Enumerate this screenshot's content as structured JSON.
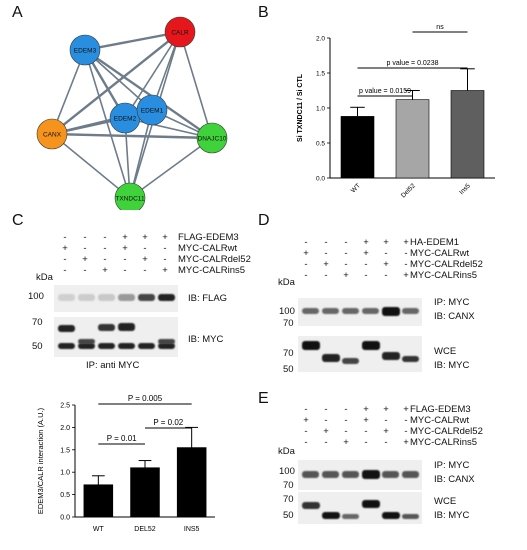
{
  "panels": {
    "A": {
      "letter": "A",
      "nodes": [
        {
          "label": "CALR",
          "color": "#e5171c"
        },
        {
          "label": "EDEM3",
          "color": "#2a8ee0"
        },
        {
          "label": "EDEM2",
          "color": "#2a8ee0"
        },
        {
          "label": "EDEM1",
          "color": "#2a8ee0"
        },
        {
          "label": "CANX",
          "color": "#f5931d"
        },
        {
          "label": "DNAJC10",
          "color": "#3fd23b"
        },
        {
          "label": "TXNDC11",
          "color": "#3fd23b"
        }
      ]
    },
    "B": {
      "letter": "B",
      "chart_data": {
        "type": "bar",
        "categories": [
          "WT",
          "Del52",
          "Ins5"
        ],
        "values": [
          0.88,
          1.12,
          1.25
        ],
        "errors": [
          0.13,
          0.13,
          0.31
        ],
        "colors": [
          "#000000",
          "#a6a6a6",
          "#5f5f5f"
        ],
        "ylabel": "Si TXNDC11 / Si CTL",
        "ylim": [
          0,
          2.0
        ],
        "yticks": [
          "0.0",
          "0.5",
          "1.0",
          "1.5",
          "2.0"
        ],
        "annotations": [
          {
            "text": "p value = 0.0159",
            "from": 0,
            "to": 1
          },
          {
            "text": "p value = 0.0238",
            "from": 0,
            "to": 2
          },
          {
            "text": "ns",
            "from": 1,
            "to": 2
          }
        ]
      }
    },
    "C": {
      "letter": "C",
      "rows": [
        {
          "label": "FLAG-EDEM3",
          "marks": [
            "-",
            "-",
            "-",
            "+",
            "+",
            "+"
          ]
        },
        {
          "label": "MYC-CALRwt",
          "marks": [
            "+",
            "-",
            "-",
            "+",
            "-",
            "-"
          ]
        },
        {
          "label": "MYC-CALRdel52",
          "marks": [
            "-",
            "+",
            "-",
            "-",
            "+",
            "-"
          ]
        },
        {
          "label": "MYC-CALRins5",
          "marks": [
            "-",
            "-",
            "+",
            "-",
            "-",
            "+"
          ]
        }
      ],
      "kda": "kDa",
      "markers_top": [
        "100",
        "70"
      ],
      "markers_bottom": [
        "50"
      ],
      "ib_top": "IB: FLAG",
      "ib_bottom": "IB: MYC",
      "ip_label": "IP: anti MYC",
      "chart_data": {
        "type": "bar",
        "categories": [
          "WT",
          "DEL52",
          "INS5"
        ],
        "values": [
          0.72,
          1.1,
          1.55
        ],
        "errors": [
          0.2,
          0.16,
          0.45
        ],
        "ylabel": "EDEM3/CALR interaction (A.U.)",
        "ylim": [
          0,
          2.5
        ],
        "yticks": [
          "0.0",
          "0.5",
          "1.0",
          "1.5",
          "2.0",
          "2.5"
        ],
        "annotations": [
          {
            "text": "P = 0.005",
            "from": 0,
            "to": 2
          },
          {
            "text": "P = 0.01",
            "from": 0,
            "to": 1
          },
          {
            "text": "P = 0.02",
            "from": 1,
            "to": 2
          }
        ]
      }
    },
    "D": {
      "letter": "D",
      "rows": [
        {
          "label": "HA-EDEM1",
          "marks": [
            "-",
            "-",
            "-",
            "+",
            "+",
            "+"
          ]
        },
        {
          "label": "MYC-CALRwt",
          "marks": [
            "+",
            "-",
            "-",
            "+",
            "-",
            "-"
          ]
        },
        {
          "label": "MYC-CALRdel52",
          "marks": [
            "-",
            "+",
            "-",
            "-",
            "+",
            "-"
          ]
        },
        {
          "label": "MYC-CALRins5",
          "marks": [
            "-",
            "-",
            "+",
            "-",
            "-",
            "+"
          ]
        }
      ],
      "kda": "kDa",
      "markers_top": [
        "100",
        "70"
      ],
      "markers_bottom": [
        "70",
        "50"
      ],
      "ip_top": "IP: MYC",
      "ib_top": "IB: CANX",
      "wce": "WCE",
      "ib_bottom": "IB: MYC"
    },
    "E": {
      "letter": "E",
      "rows": [
        {
          "label": "FLAG-EDEM3",
          "marks": [
            "-",
            "-",
            "-",
            "+",
            "+",
            "+"
          ]
        },
        {
          "label": "MYC-CALRwt",
          "marks": [
            "+",
            "-",
            "-",
            "+",
            "-",
            "-"
          ]
        },
        {
          "label": "MYC-CALRdel52",
          "marks": [
            "-",
            "+",
            "-",
            "-",
            "+",
            "-"
          ]
        },
        {
          "label": "MYC-CALRins5",
          "marks": [
            "-",
            "-",
            "+",
            "-",
            "-",
            "+"
          ]
        }
      ],
      "kda": "kDa",
      "markers_top": [
        "100",
        "70"
      ],
      "markers_bottom": [
        "70",
        "50"
      ],
      "ip_top": "IP: MYC",
      "ib_top": "IB: CANX",
      "wce": "WCE",
      "ib_bottom": "IB: MYC"
    }
  }
}
